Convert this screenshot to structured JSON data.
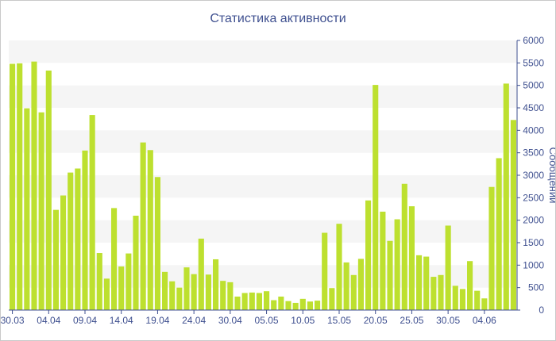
{
  "chart_data": {
    "type": "bar",
    "title": "Статистика активности",
    "xlabel": "",
    "ylabel": "Сообщений",
    "ylim": [
      0,
      6000
    ],
    "yticks": [
      0,
      500,
      1000,
      1500,
      2000,
      2500,
      3000,
      3500,
      4000,
      4500,
      5000,
      5500,
      6000
    ],
    "grid": "alternating horizontal bands",
    "y_axis_position": "right",
    "bar_color": "#bde02f",
    "axis_color": "#3e4f8f",
    "band_color": "#f5f5f5",
    "x_tick_labels": [
      {
        "label": "30.03",
        "index": 0
      },
      {
        "label": "04.04",
        "index": 5
      },
      {
        "label": "09.04",
        "index": 10
      },
      {
        "label": "14.04",
        "index": 15
      },
      {
        "label": "19.04",
        "index": 20
      },
      {
        "label": "24.04",
        "index": 25
      },
      {
        "label": "30.04",
        "index": 30
      },
      {
        "label": "05.05",
        "index": 35
      },
      {
        "label": "10.05",
        "index": 40
      },
      {
        "label": "15.05",
        "index": 45
      },
      {
        "label": "20.05",
        "index": 50
      },
      {
        "label": "25.05",
        "index": 55
      },
      {
        "label": "30.05",
        "index": 60
      },
      {
        "label": "04.06",
        "index": 65
      }
    ],
    "values": [
      5480,
      5490,
      4490,
      5530,
      4400,
      5330,
      2230,
      2550,
      3060,
      3150,
      3550,
      4340,
      1270,
      700,
      2270,
      970,
      1260,
      2100,
      3730,
      3560,
      2960,
      850,
      640,
      500,
      950,
      800,
      1590,
      790,
      1130,
      650,
      620,
      300,
      380,
      390,
      380,
      420,
      220,
      300,
      200,
      160,
      250,
      190,
      210,
      1720,
      490,
      1920,
      1060,
      780,
      1140,
      2440,
      5010,
      2190,
      1540,
      2020,
      2810,
      2310,
      1220,
      1190,
      740,
      780,
      1880,
      540,
      470,
      1090,
      430,
      260,
      2740,
      3380,
      5040,
      4230
    ]
  }
}
